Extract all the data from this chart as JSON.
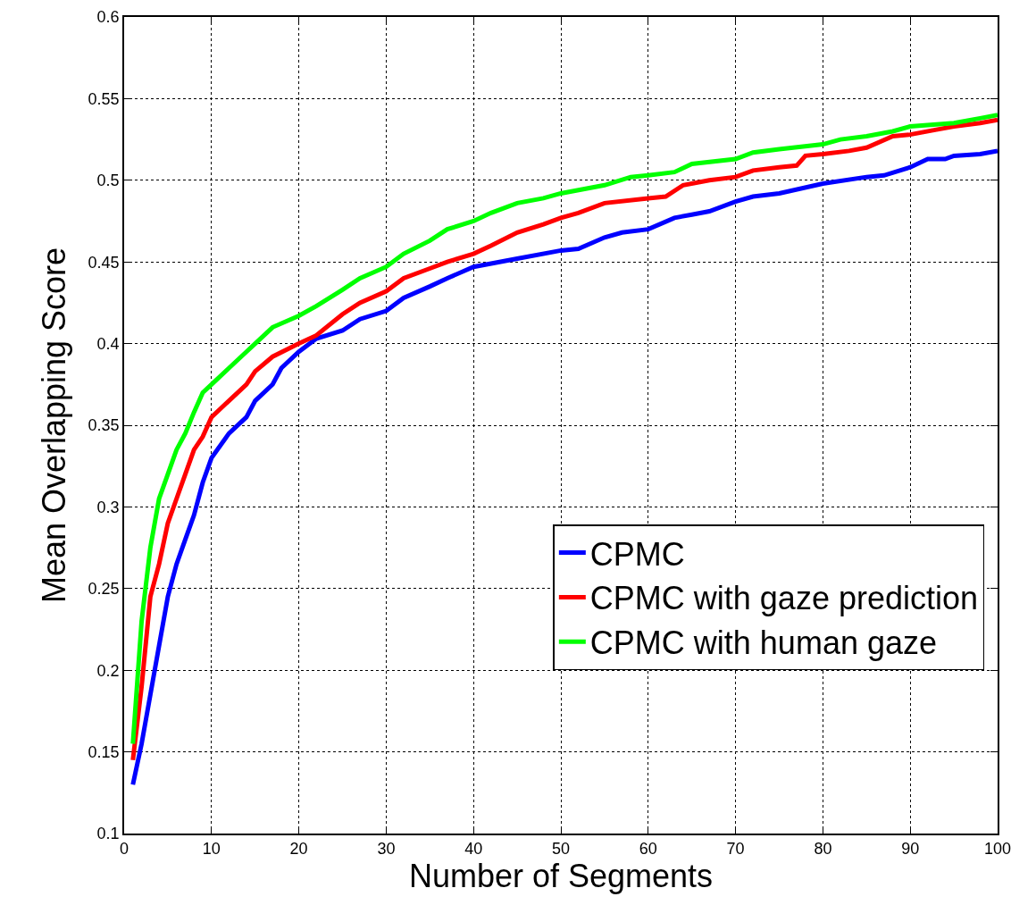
{
  "chart_data": {
    "type": "line",
    "xlabel": "Number of Segments",
    "ylabel": "Mean Overlapping Score",
    "xlim": [
      0,
      100
    ],
    "xticks": [
      0,
      10,
      20,
      30,
      40,
      50,
      60,
      70,
      80,
      90,
      100
    ],
    "ylim": [
      0.1,
      0.6
    ],
    "yticks": [
      0.1,
      0.15,
      0.2,
      0.25,
      0.3,
      0.35,
      0.4,
      0.45,
      0.5,
      0.55,
      0.6
    ],
    "grid": true,
    "legend": "bottom right",
    "marker": "none",
    "line_style": "solid",
    "series": [
      {
        "name": "CPMC",
        "color": "#0000ff",
        "x": [
          1,
          2,
          3,
          4,
          5,
          6,
          7,
          8,
          9,
          10,
          12,
          14,
          15,
          17,
          18,
          20,
          22,
          25,
          27,
          30,
          32,
          35,
          37,
          40,
          45,
          50,
          52,
          55,
          57,
          60,
          63,
          65,
          67,
          70,
          72,
          75,
          80,
          85,
          87,
          90,
          92,
          94,
          95,
          98,
          100
        ],
        "values": [
          0.13,
          0.155,
          0.185,
          0.215,
          0.245,
          0.265,
          0.28,
          0.295,
          0.315,
          0.33,
          0.345,
          0.355,
          0.365,
          0.375,
          0.385,
          0.395,
          0.403,
          0.408,
          0.415,
          0.42,
          0.428,
          0.435,
          0.44,
          0.447,
          0.452,
          0.457,
          0.458,
          0.465,
          0.468,
          0.47,
          0.477,
          0.479,
          0.481,
          0.487,
          0.49,
          0.492,
          0.498,
          0.502,
          0.503,
          0.508,
          0.513,
          0.513,
          0.515,
          0.516,
          0.518
        ]
      },
      {
        "name": "CPMC with gaze prediction",
        "color": "#ff0000",
        "x": [
          1,
          2,
          3,
          4,
          5,
          6,
          7,
          8,
          9,
          10,
          12,
          14,
          15,
          17,
          20,
          22,
          25,
          27,
          30,
          32,
          35,
          37,
          40,
          42,
          45,
          48,
          50,
          52,
          55,
          60,
          62,
          64,
          67,
          70,
          72,
          75,
          77,
          78,
          80,
          83,
          85,
          88,
          90,
          93,
          95,
          98,
          100
        ],
        "values": [
          0.145,
          0.19,
          0.245,
          0.265,
          0.29,
          0.305,
          0.32,
          0.335,
          0.343,
          0.355,
          0.365,
          0.375,
          0.383,
          0.392,
          0.4,
          0.405,
          0.418,
          0.425,
          0.432,
          0.44,
          0.446,
          0.45,
          0.455,
          0.46,
          0.468,
          0.473,
          0.477,
          0.48,
          0.486,
          0.489,
          0.49,
          0.497,
          0.5,
          0.502,
          0.506,
          0.508,
          0.509,
          0.515,
          0.516,
          0.518,
          0.52,
          0.527,
          0.528,
          0.531,
          0.533,
          0.535,
          0.537
        ]
      },
      {
        "name": "CPMC with human gaze",
        "color": "#00ff00",
        "x": [
          1,
          2,
          3,
          4,
          5,
          6,
          7,
          8,
          9,
          10,
          12,
          14,
          15,
          17,
          20,
          22,
          25,
          27,
          30,
          32,
          35,
          37,
          40,
          42,
          45,
          48,
          50,
          55,
          58,
          60,
          63,
          65,
          70,
          72,
          75,
          80,
          82,
          85,
          88,
          90,
          95,
          98,
          100
        ],
        "values": [
          0.155,
          0.23,
          0.275,
          0.305,
          0.32,
          0.335,
          0.345,
          0.358,
          0.37,
          0.375,
          0.385,
          0.395,
          0.4,
          0.41,
          0.417,
          0.423,
          0.433,
          0.44,
          0.447,
          0.455,
          0.463,
          0.47,
          0.475,
          0.48,
          0.486,
          0.489,
          0.492,
          0.497,
          0.502,
          0.503,
          0.505,
          0.51,
          0.513,
          0.517,
          0.519,
          0.522,
          0.525,
          0.527,
          0.53,
          0.533,
          0.535,
          0.538,
          0.54
        ]
      }
    ]
  }
}
